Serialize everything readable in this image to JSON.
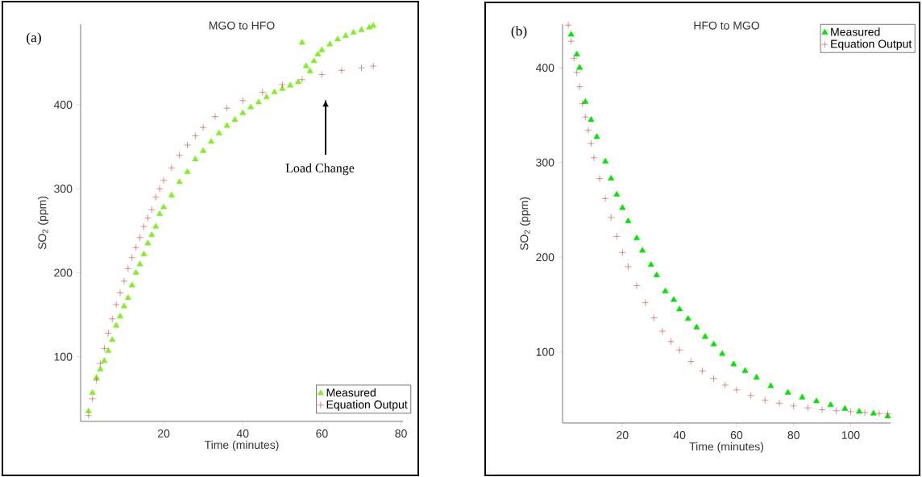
{
  "chart_data": [
    {
      "type": "scatter",
      "title": "MGO to HFO",
      "xlabel": "Time (minutes)",
      "ylabel": "SO$_{2}$ (ppm)",
      "annotations": [
        "(a)",
        "Load Change"
      ],
      "xlim": [
        -1,
        80.5
      ],
      "xticks": [
        20,
        40,
        60,
        80
      ],
      "ylim": [
        23,
        496
      ],
      "yticks": [
        100,
        200,
        300,
        400
      ],
      "legend": "bottom right",
      "series": [
        {
          "name": "Measured",
          "color": "#80f020",
          "marker": "triangle",
          "x": [
            1,
            2,
            3,
            4,
            5,
            6,
            7,
            8,
            9,
            10,
            11,
            12,
            13,
            14,
            15,
            16,
            17,
            18,
            19,
            20,
            22,
            24,
            26,
            28,
            30,
            32,
            34,
            36,
            38,
            40,
            42,
            44,
            46,
            48,
            50,
            52,
            54,
            55,
            56,
            57,
            58,
            59,
            60,
            62,
            64,
            66,
            68,
            70,
            72,
            73
          ],
          "values": [
            35,
            57,
            75,
            85,
            95,
            107,
            120,
            137,
            148,
            160,
            170,
            185,
            200,
            210,
            222,
            235,
            245,
            255,
            270,
            278,
            292,
            308,
            320,
            335,
            345,
            356,
            366,
            375,
            382,
            390,
            397,
            403,
            409,
            415,
            419,
            423,
            427,
            474,
            446,
            440,
            452,
            460,
            465,
            472,
            478,
            482,
            486,
            489,
            492,
            494
          ]
        },
        {
          "name": "Equation Output",
          "color": "#c03030",
          "marker": "cross",
          "x": [
            1,
            2,
            3,
            4,
            5,
            6,
            7,
            8,
            9,
            10,
            11,
            12,
            13,
            14,
            15,
            16,
            17,
            18,
            19,
            20,
            22,
            24,
            26,
            28,
            30,
            33,
            36,
            40,
            45,
            50,
            55,
            60,
            65,
            70,
            73
          ],
          "values": [
            30,
            50,
            72,
            92,
            110,
            128,
            145,
            162,
            176,
            190,
            205,
            218,
            230,
            242,
            255,
            265,
            275,
            290,
            300,
            310,
            325,
            340,
            352,
            363,
            373,
            386,
            396,
            405,
            415,
            424,
            430,
            436,
            441,
            444,
            446
          ]
        }
      ]
    },
    {
      "type": "scatter",
      "title": "HFO to MGO",
      "xlabel": "Time (minutes)",
      "ylabel": "SO$_{2}$ (ppm)",
      "annotations": [
        "(b)"
      ],
      "xlim": [
        -1,
        114
      ],
      "xticks": [
        20,
        40,
        60,
        80,
        100
      ],
      "ylim": [
        25,
        446
      ],
      "yticks": [
        100,
        200,
        300,
        400
      ],
      "legend": "top right",
      "series": [
        {
          "name": "Measured",
          "color": "#00e600",
          "marker": "triangle",
          "x": [
            2,
            4,
            5,
            7,
            9,
            11,
            14,
            16,
            18,
            20,
            22,
            25,
            27,
            30,
            32,
            35,
            38,
            40,
            43,
            46,
            49,
            52,
            55,
            59,
            63,
            67,
            72,
            78,
            83,
            88,
            93,
            98,
            103,
            108,
            113
          ],
          "values": [
            435,
            414,
            400,
            364,
            345,
            327,
            301,
            283,
            266,
            252,
            238,
            220,
            207,
            192,
            181,
            164,
            155,
            145,
            135,
            126,
            116,
            108,
            98,
            87,
            80,
            73,
            64,
            57,
            52,
            48,
            44,
            40,
            37,
            35,
            32
          ]
        },
        {
          "name": "Equation Output",
          "color": "#c03030",
          "marker": "cross",
          "x": [
            1,
            2,
            3,
            4,
            5,
            6,
            7,
            8,
            9,
            10,
            12,
            14,
            16,
            18,
            20,
            22,
            25,
            28,
            31,
            34,
            37,
            40,
            44,
            48,
            52,
            56,
            60,
            65,
            70,
            75,
            80,
            85,
            90,
            95,
            100,
            105,
            110,
            113
          ],
          "values": [
            445,
            428,
            410,
            395,
            380,
            362,
            348,
            334,
            320,
            305,
            283,
            262,
            242,
            222,
            205,
            190,
            170,
            152,
            136,
            122,
            111,
            102,
            90,
            80,
            72,
            65,
            60,
            54,
            49,
            46,
            43,
            41,
            39,
            38,
            37,
            36,
            35,
            35
          ]
        }
      ]
    }
  ]
}
